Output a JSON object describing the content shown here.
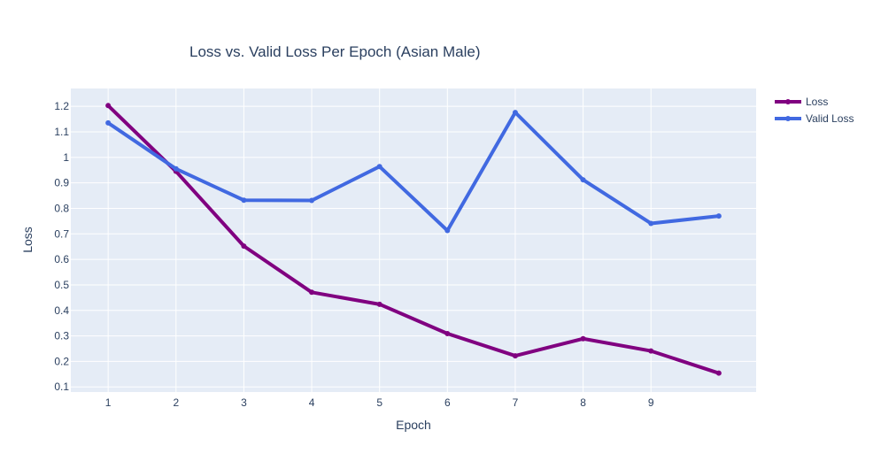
{
  "chart_data": {
    "type": "line",
    "title": "Loss vs. Valid Loss Per Epoch (Asian Male)",
    "xlabel": "Epoch",
    "ylabel": "Loss",
    "x": [
      1,
      2,
      3,
      4,
      5,
      6,
      7,
      8,
      9,
      10
    ],
    "x_tick_labels": [
      "1",
      "2",
      "3",
      "4",
      "5",
      "6",
      "7",
      "8",
      "9"
    ],
    "x_tick_values": [
      1,
      2,
      3,
      4,
      5,
      6,
      7,
      8,
      9
    ],
    "xlim": [
      0.45,
      10.55
    ],
    "y_tick_labels": [
      "0.1",
      "0.2",
      "0.3",
      "0.4",
      "0.5",
      "0.6",
      "0.7",
      "0.8",
      "0.9",
      "1",
      "1.1",
      "1.2"
    ],
    "y_tick_values": [
      0.1,
      0.2,
      0.3,
      0.4,
      0.5,
      0.6,
      0.7,
      0.8,
      0.9,
      1.0,
      1.1,
      1.2
    ],
    "ylim": [
      0.08,
      1.27
    ],
    "grid": true,
    "legend_position": "top-right",
    "plot_background": "#e5ecf6",
    "series": [
      {
        "name": "Loss",
        "color": "#800080",
        "values": [
          1.203,
          0.945,
          0.652,
          0.471,
          0.424,
          0.309,
          0.222,
          0.289,
          0.241,
          0.154
        ]
      },
      {
        "name": "Valid Loss",
        "color": "#4169e1",
        "values": [
          1.135,
          0.955,
          0.832,
          0.831,
          0.964,
          0.713,
          1.176,
          0.912,
          0.741,
          0.77
        ]
      }
    ]
  }
}
